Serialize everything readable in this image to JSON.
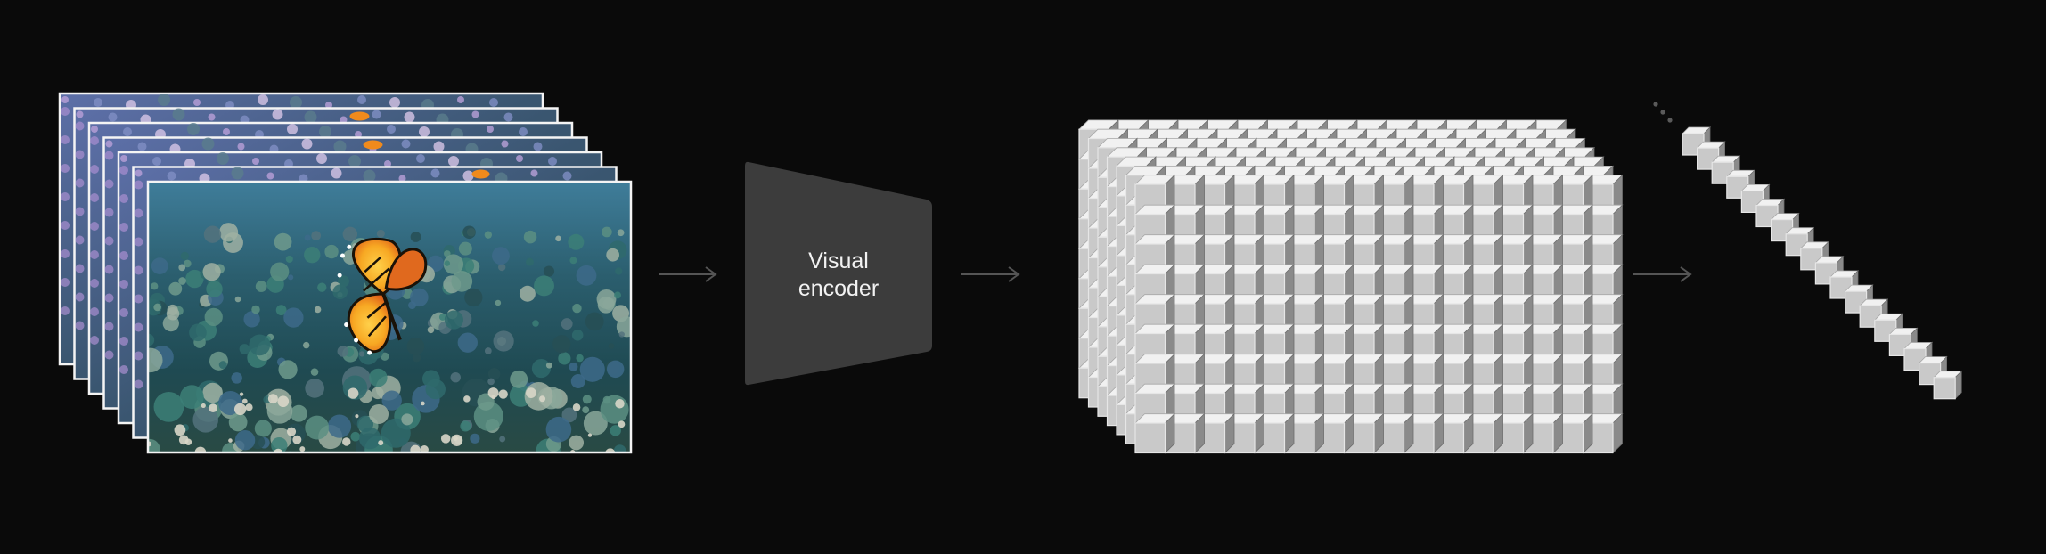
{
  "encoder": {
    "label_line1": "Visual",
    "label_line2": "encoder"
  },
  "colors": {
    "background": "#0a0a0a",
    "encoder_fill": "#3c3c3c",
    "arrow": "#555555",
    "cube_front": "#c9c9c9",
    "cube_top": "#f1f1f1",
    "cube_side": "#8a8a8a",
    "frame_border": "#f4f4f4"
  },
  "frames": {
    "count": 7,
    "scene": "underwater-coral-reef-with-butterfly"
  },
  "patch_grid": {
    "columns": 16,
    "rows": 9,
    "depth": 7
  },
  "token_sequence": {
    "visible_tokens": 18,
    "continuation_dots": 3
  }
}
